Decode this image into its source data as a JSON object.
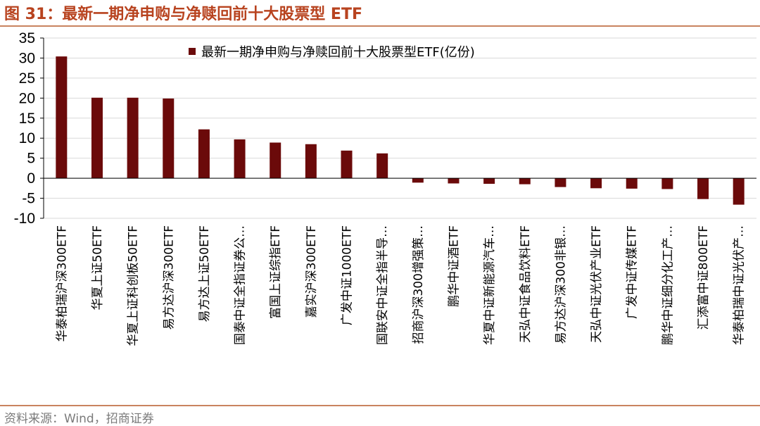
{
  "figure_title": "图 31：最新一期净申购与净赎回前十大股票型 ETF",
  "source": "资料来源：Wind，招商证券",
  "colors": {
    "bar": "#6B0A0A",
    "title": "#B8431F",
    "rule": "#C9835F",
    "grid": "#D9D9D9"
  },
  "chart_data": {
    "type": "bar",
    "title": "",
    "xlabel": "",
    "ylabel": "",
    "ylim": [
      -10,
      35
    ],
    "yticks": [
      35,
      30,
      25,
      20,
      15,
      10,
      5,
      0,
      -5,
      -10
    ],
    "grid": true,
    "legend_position": "top",
    "series": [
      {
        "name": "最新一期净申购与净赎回前十大股票型ETF(亿份)",
        "values": [
          30.4,
          20.1,
          20.1,
          19.9,
          12.2,
          9.7,
          8.9,
          8.5,
          6.9,
          6.2,
          -1.1,
          -1.3,
          -1.4,
          -1.5,
          -2.2,
          -2.5,
          -2.6,
          -2.7,
          -5.2,
          -6.6
        ]
      }
    ],
    "categories": [
      "华泰柏瑞沪深300ETF",
      "华夏上证50ETF",
      "华夏上证科创板50ETF",
      "易方达沪深300ETF",
      "易方达上证50ETF",
      "国泰中证全指证券公…",
      "富国上证综指ETF",
      "嘉实沪深300ETF",
      "广发中证1000ETF",
      "国联安中证全指半导…",
      "招商沪深300增强策…",
      "鹏华中证酒ETF",
      "华夏中证新能源汽车…",
      "天弘中证食品饮料ETF",
      "易方达沪深300非银…",
      "天弘中证光伏产业ETF",
      "广发中证传媒ETF",
      "鹏华中证细分化工产…",
      "汇添富中证800ETF",
      "华泰柏瑞中证光伏产…"
    ]
  }
}
